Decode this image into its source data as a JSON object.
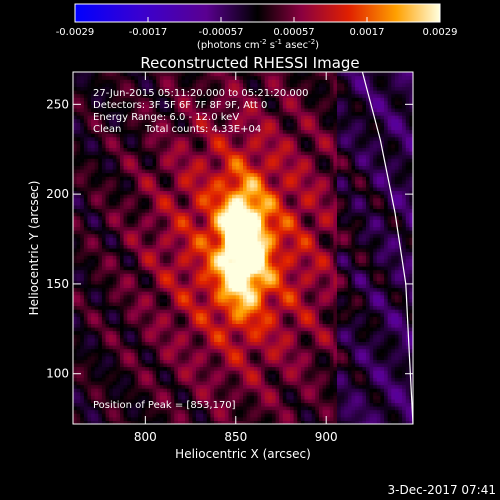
{
  "chart_data": {
    "type": "heatmap",
    "title": "Reconstructed RHESSI Image",
    "xlabel": "Heliocentric X (arcsec)",
    "ylabel": "Heliocentric Y (arcsec)",
    "xlim": [
      760,
      948
    ],
    "ylim": [
      72,
      268
    ],
    "x_ticks": [
      800,
      850,
      900
    ],
    "y_ticks": [
      100,
      150,
      200,
      250
    ],
    "colorbar": {
      "range": [
        -0.0029,
        0.0029
      ],
      "ticks": [
        "-0.0029",
        "-0.0017",
        "-0.00057",
        "0.00057",
        "0.0017",
        "0.0029"
      ],
      "units_main": "(photons cm",
      "units_exp1": "-2",
      "units_mid": " s",
      "units_exp2": "-1",
      "units_tail": " asec",
      "units_exp3": "-2",
      "units_close": ")"
    },
    "peak": {
      "x": 853,
      "y": 170,
      "value": 0.0029
    },
    "limb_points": [
      [
        920,
        268
      ],
      [
        930,
        230
      ],
      [
        938,
        190
      ],
      [
        944,
        150
      ],
      [
        946,
        110
      ],
      [
        948,
        72
      ]
    ],
    "annotations": {
      "time_range": "27-Jun-2015 05:11:20.000 to 05:21:20.000",
      "detectors": "Detectors: 3F 5F 6F 7F 8F 9F, Att 0",
      "energy": "Energy Range: 6.0 - 12.0 keV",
      "clean": "Clean",
      "counts": "Total counts: 4.33E+04",
      "peak_text": "Position of Peak = [853,170]"
    },
    "footer_date": "3-Dec-2017 07:41"
  }
}
